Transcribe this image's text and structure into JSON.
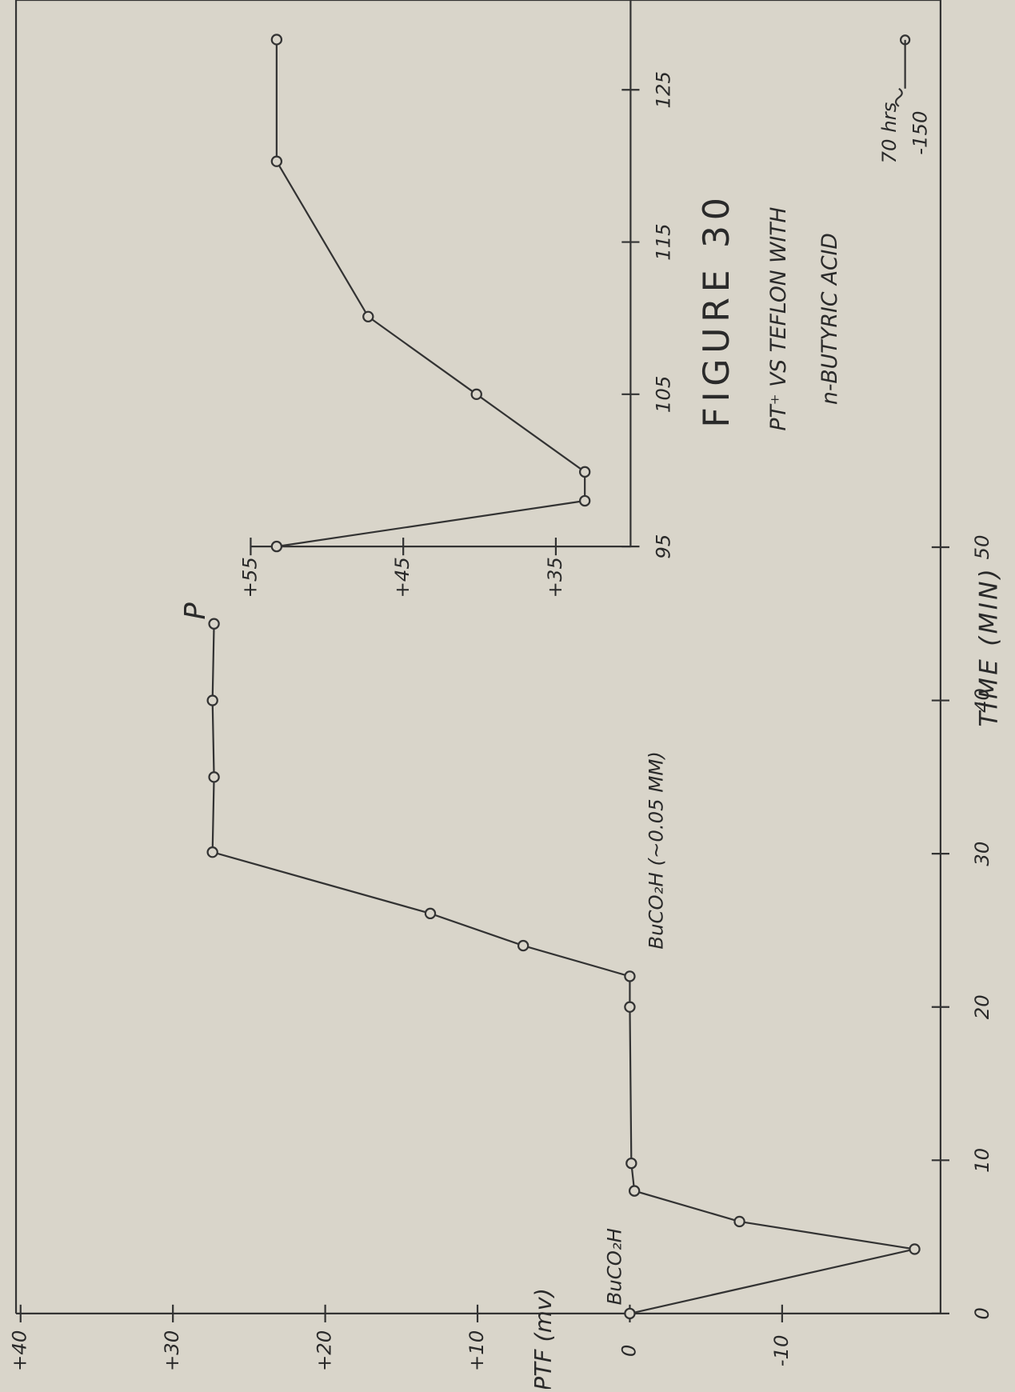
{
  "chart_data": [
    {
      "type": "line",
      "title": "FIGURE 30",
      "subtitle_lines": [
        "PT⁺ VS TEFLON WITH",
        "n-BUTYRIC ACID"
      ],
      "x_label": "TIME (MIN)",
      "y_label": "ΔCPTF (mv)",
      "x": [
        0,
        4.2,
        6.0,
        8.0,
        9.8,
        20,
        22,
        24,
        26.1,
        30.1,
        35,
        40,
        45
      ],
      "values": [
        0,
        -18.7,
        -7.2,
        -0.3,
        -0.1,
        0,
        0,
        7.0,
        13.1,
        27.4,
        27.3,
        27.4,
        27.3
      ],
      "xlim": [
        0,
        85.7
      ],
      "xticks": [
        0,
        10,
        20,
        30,
        40,
        50
      ],
      "ylim": [
        -20.4,
        40.3
      ],
      "yticks": [
        {
          "value": 40,
          "label": "+40"
        },
        {
          "value": 30,
          "label": "+30"
        },
        {
          "value": 20,
          "label": "+20"
        },
        {
          "value": 10,
          "label": "+10"
        },
        0,
        -10
      ],
      "color": "#333333",
      "annotations": [
        "BuCO₂H",
        "BuCO₂H (∼0.05 MM)",
        "P",
        "70 hrs",
        "-150"
      ]
    },
    {
      "type": "line",
      "x": [
        95,
        98,
        99.9,
        105,
        110.1,
        120.3,
        128.3
      ],
      "values": [
        53.3,
        33.1,
        33.1,
        40.2,
        47.3,
        53.3,
        53.3
      ],
      "xlim": [
        95,
        130.9
      ],
      "xticks": [
        95,
        105,
        115,
        125
      ],
      "ylim": [
        30.1,
        55
      ],
      "yticks": [
        {
          "value": 55,
          "label": "+55"
        },
        {
          "value": 45,
          "label": "+45"
        },
        {
          "value": 35,
          "label": "+35"
        }
      ],
      "color": "#333333"
    }
  ]
}
